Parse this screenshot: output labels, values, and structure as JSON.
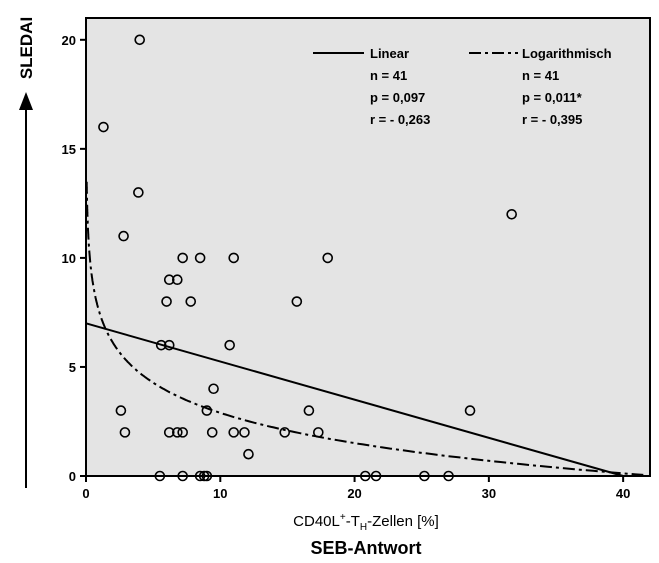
{
  "chart_data": {
    "type": "scatter",
    "xlabel_main": "CD40L",
    "xlabel_sup": "+",
    "xlabel_mid": "-T",
    "xlabel_sub": "H",
    "xlabel_end": "-Zellen [%]",
    "xlabel_secondary": "SEB-Antwort",
    "ylabel": "SLEDAI",
    "xlim": [
      0,
      42
    ],
    "ylim": [
      0,
      21
    ],
    "xticks": [
      0,
      10,
      20,
      30,
      40
    ],
    "yticks": [
      0,
      5,
      10,
      15,
      20
    ],
    "grid": false,
    "background": "#e4e4e4",
    "points": [
      {
        "x": 4.0,
        "y": 20
      },
      {
        "x": 1.3,
        "y": 16
      },
      {
        "x": 3.9,
        "y": 13
      },
      {
        "x": 2.8,
        "y": 11
      },
      {
        "x": 31.7,
        "y": 12
      },
      {
        "x": 7.2,
        "y": 10
      },
      {
        "x": 8.5,
        "y": 10
      },
      {
        "x": 11.0,
        "y": 10
      },
      {
        "x": 18.0,
        "y": 10
      },
      {
        "x": 6.2,
        "y": 9
      },
      {
        "x": 6.8,
        "y": 9
      },
      {
        "x": 6.0,
        "y": 8
      },
      {
        "x": 7.8,
        "y": 8
      },
      {
        "x": 15.7,
        "y": 8
      },
      {
        "x": 5.6,
        "y": 6
      },
      {
        "x": 6.2,
        "y": 6
      },
      {
        "x": 10.7,
        "y": 6
      },
      {
        "x": 9.5,
        "y": 4
      },
      {
        "x": 2.6,
        "y": 3
      },
      {
        "x": 9.0,
        "y": 3
      },
      {
        "x": 16.6,
        "y": 3
      },
      {
        "x": 28.6,
        "y": 3
      },
      {
        "x": 2.9,
        "y": 2
      },
      {
        "x": 6.2,
        "y": 2
      },
      {
        "x": 6.8,
        "y": 2
      },
      {
        "x": 7.2,
        "y": 2
      },
      {
        "x": 9.4,
        "y": 2
      },
      {
        "x": 11.0,
        "y": 2
      },
      {
        "x": 11.8,
        "y": 2
      },
      {
        "x": 14.8,
        "y": 2
      },
      {
        "x": 17.3,
        "y": 2
      },
      {
        "x": 12.1,
        "y": 1
      },
      {
        "x": 5.5,
        "y": 0
      },
      {
        "x": 7.2,
        "y": 0
      },
      {
        "x": 8.5,
        "y": 0
      },
      {
        "x": 8.8,
        "y": 0
      },
      {
        "x": 9.0,
        "y": 0
      },
      {
        "x": 20.8,
        "y": 0
      },
      {
        "x": 21.6,
        "y": 0
      },
      {
        "x": 25.2,
        "y": 0
      },
      {
        "x": 27.0,
        "y": 0
      }
    ],
    "fits": [
      {
        "name": "Linear",
        "kind": "linear",
        "style": "solid",
        "intercept": 7.0,
        "slope": -0.175,
        "n": "n = 41",
        "p": "p = 0,097",
        "r": "r = - 0,263"
      },
      {
        "name": "Logarithmisch",
        "kind": "log",
        "style": "dashdot",
        "a": 7.5,
        "b": -2.0,
        "n": "n = 41",
        "p": "p = 0,011*",
        "r": "r = - 0,395"
      }
    ]
  }
}
